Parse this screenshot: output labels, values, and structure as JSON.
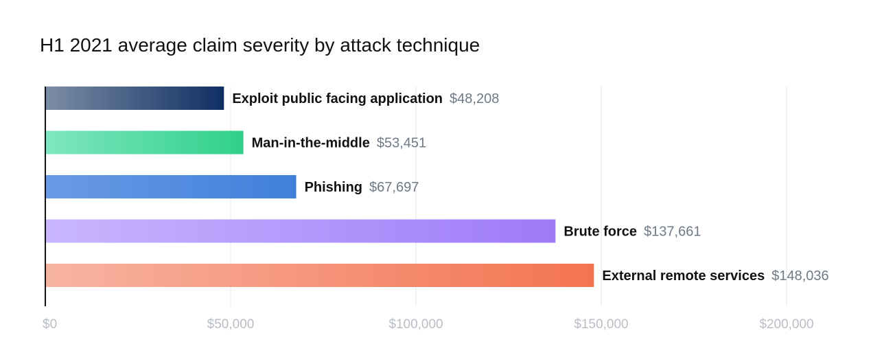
{
  "chart_data": {
    "type": "bar",
    "orientation": "horizontal",
    "title": "H1 2021 average claim severity by attack technique",
    "categories": [
      "Exploit public facing application",
      "Man-in-the-middle",
      "Phishing",
      "Brute force",
      "External remote services"
    ],
    "values": [
      48208,
      53451,
      67697,
      137661,
      148036
    ],
    "value_labels": [
      "$48,208",
      "$53,451",
      "$67,697",
      "$137,661",
      "$148,036"
    ],
    "xlim": [
      0,
      200000
    ],
    "x_ticks": [
      0,
      50000,
      100000,
      150000,
      200000
    ],
    "x_tick_labels": [
      "$0",
      "$50,000",
      "$100,000",
      "$150,000",
      "$200,000"
    ],
    "grid": "vertical",
    "legend": "none",
    "bar_colors": [
      [
        "#7c8da6",
        "#0f2f63"
      ],
      [
        "#7fe6c0",
        "#2fd08a"
      ],
      [
        "#6a9be6",
        "#4080da"
      ],
      [
        "#c9b6fe",
        "#9e7bf8"
      ],
      [
        "#f7b4a3",
        "#f47450"
      ]
    ],
    "label_color": "#111111",
    "value_color": "#6f7a86",
    "tick_color": "#b9bec5",
    "grid_color": "#e6e6e6"
  }
}
